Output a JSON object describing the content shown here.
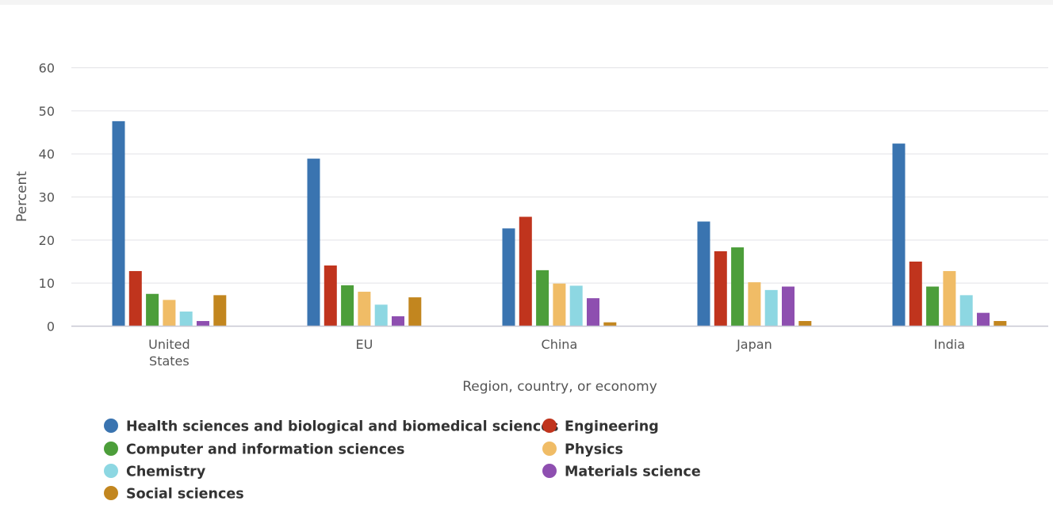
{
  "chart_data": {
    "type": "bar",
    "title": "",
    "xlabel": "Region, country, or economy",
    "ylabel": "Percent",
    "ylim": [
      0,
      60
    ],
    "yticks": [
      0,
      10,
      20,
      30,
      40,
      50,
      60
    ],
    "grid": true,
    "legend_position": "bottom",
    "categories": [
      [
        "United",
        "States"
      ],
      [
        "EU"
      ],
      [
        "China"
      ],
      [
        "Japan"
      ],
      [
        "India"
      ]
    ],
    "series": [
      {
        "name": "Health sciences and biological and biomedical sciences",
        "color": "#3a74b0",
        "values": [
          47.6,
          38.9,
          22.7,
          24.3,
          42.4
        ]
      },
      {
        "name": "Engineering",
        "color": "#c0341d",
        "values": [
          12.8,
          14.1,
          25.4,
          17.4,
          15.0
        ]
      },
      {
        "name": "Computer and information sciences",
        "color": "#4c9e3a",
        "values": [
          7.5,
          9.5,
          13.0,
          18.3,
          9.2
        ]
      },
      {
        "name": "Physics",
        "color": "#f0bc66",
        "values": [
          6.1,
          8.0,
          9.9,
          10.2,
          12.8
        ]
      },
      {
        "name": "Chemistry",
        "color": "#8dd7e2",
        "values": [
          3.4,
          5.0,
          9.4,
          8.4,
          7.2
        ]
      },
      {
        "name": "Materials science",
        "color": "#8e4fb0",
        "values": [
          1.2,
          2.3,
          6.5,
          9.2,
          3.1
        ]
      },
      {
        "name": "Social sciences",
        "color": "#c2861f",
        "values": [
          7.2,
          6.7,
          0.9,
          1.2,
          1.2
        ]
      }
    ]
  }
}
